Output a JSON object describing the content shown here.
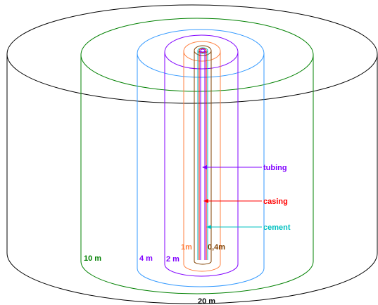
{
  "diagram": {
    "radius_labels": {
      "r20": "20 m",
      "r10": "10 m",
      "r4": "4 m",
      "r2": "2 m",
      "r1": "1m",
      "r04": "0,4m"
    },
    "callouts": {
      "tubing": "tubing",
      "casing": "casing",
      "cement": "cement"
    },
    "colors": {
      "r20": "#000000",
      "r10": "#008000",
      "r4": "#3399ff",
      "r2": "#8000ff",
      "r1": "#ff8040",
      "r04": "#804000",
      "tubing": "#8000ff",
      "casing": "#ff0000",
      "cement": "#00c0c0"
    }
  }
}
